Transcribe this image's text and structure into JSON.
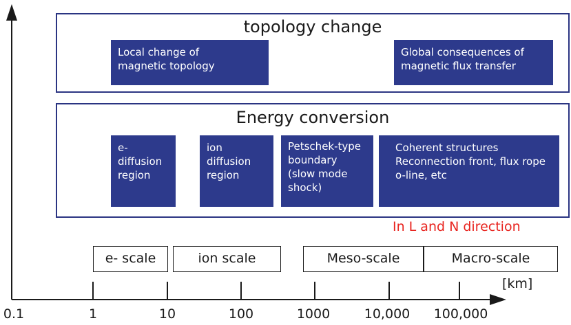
{
  "topology": {
    "title": "topology change",
    "boxes": [
      {
        "text": "Local change of\nmagnetic topology"
      },
      {
        "text": "Global consequences of\nmagnetic flux transfer"
      }
    ]
  },
  "energy": {
    "title": "Energy conversion",
    "boxes": [
      {
        "text": "e- diffusion\nregion"
      },
      {
        "text": "ion diffusion\nregion"
      },
      {
        "text": "Petschek-type\nboundary\n(slow mode\nshock)"
      },
      {
        "text": "Coherent structures\nReconnection front, flux rope\no-line, etc"
      }
    ]
  },
  "direction_note": "In L and N direction",
  "scales": [
    "e- scale",
    "ion scale",
    "Meso-scale",
    "Macro-scale"
  ],
  "axis": {
    "unit": "[km]",
    "ticks": [
      "0.1",
      "1",
      "10",
      "100",
      "1000",
      "10,000",
      "100,000"
    ]
  },
  "colors": {
    "box_fill": "#2d3a8c",
    "frame": "#2a3482",
    "note": "#e8231e"
  }
}
